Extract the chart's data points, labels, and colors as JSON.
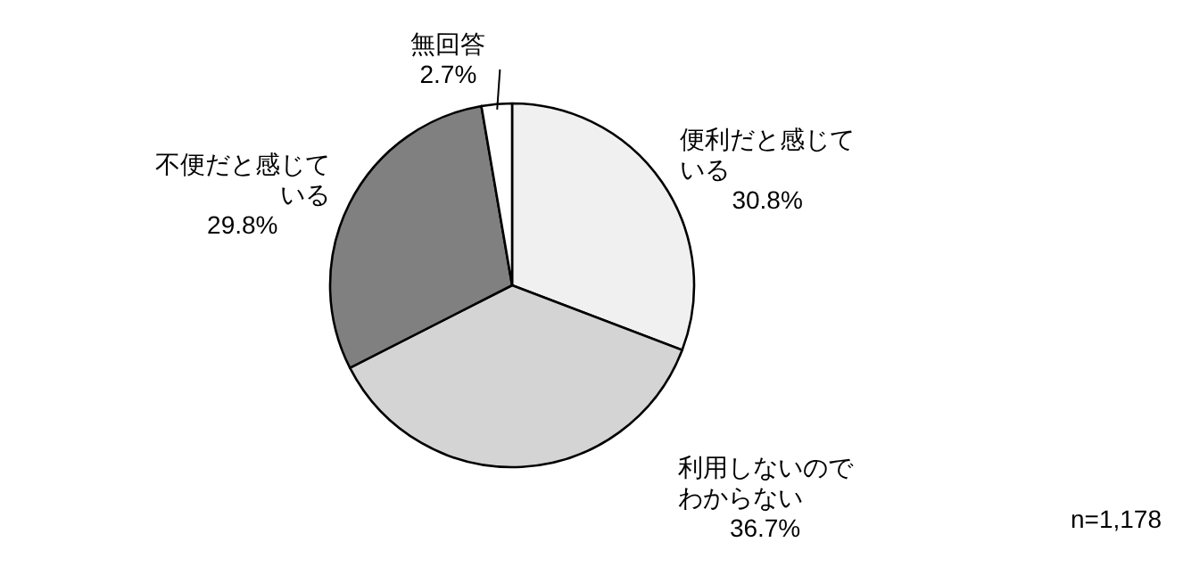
{
  "chart_data": {
    "type": "pie",
    "categories": [
      "便利だと感じている",
      "利用しないのでわからない",
      "不便だと感じている",
      "無回答"
    ],
    "values": [
      30.8,
      36.7,
      29.8,
      2.7
    ],
    "value_labels": [
      "30.8%",
      "36.7%",
      "29.8%",
      "2.7%"
    ],
    "colors": [
      "#f0f0f0",
      "#d4d4d4",
      "#808080",
      "#ffffff"
    ],
    "annotations": [
      "n=1,178"
    ]
  }
}
